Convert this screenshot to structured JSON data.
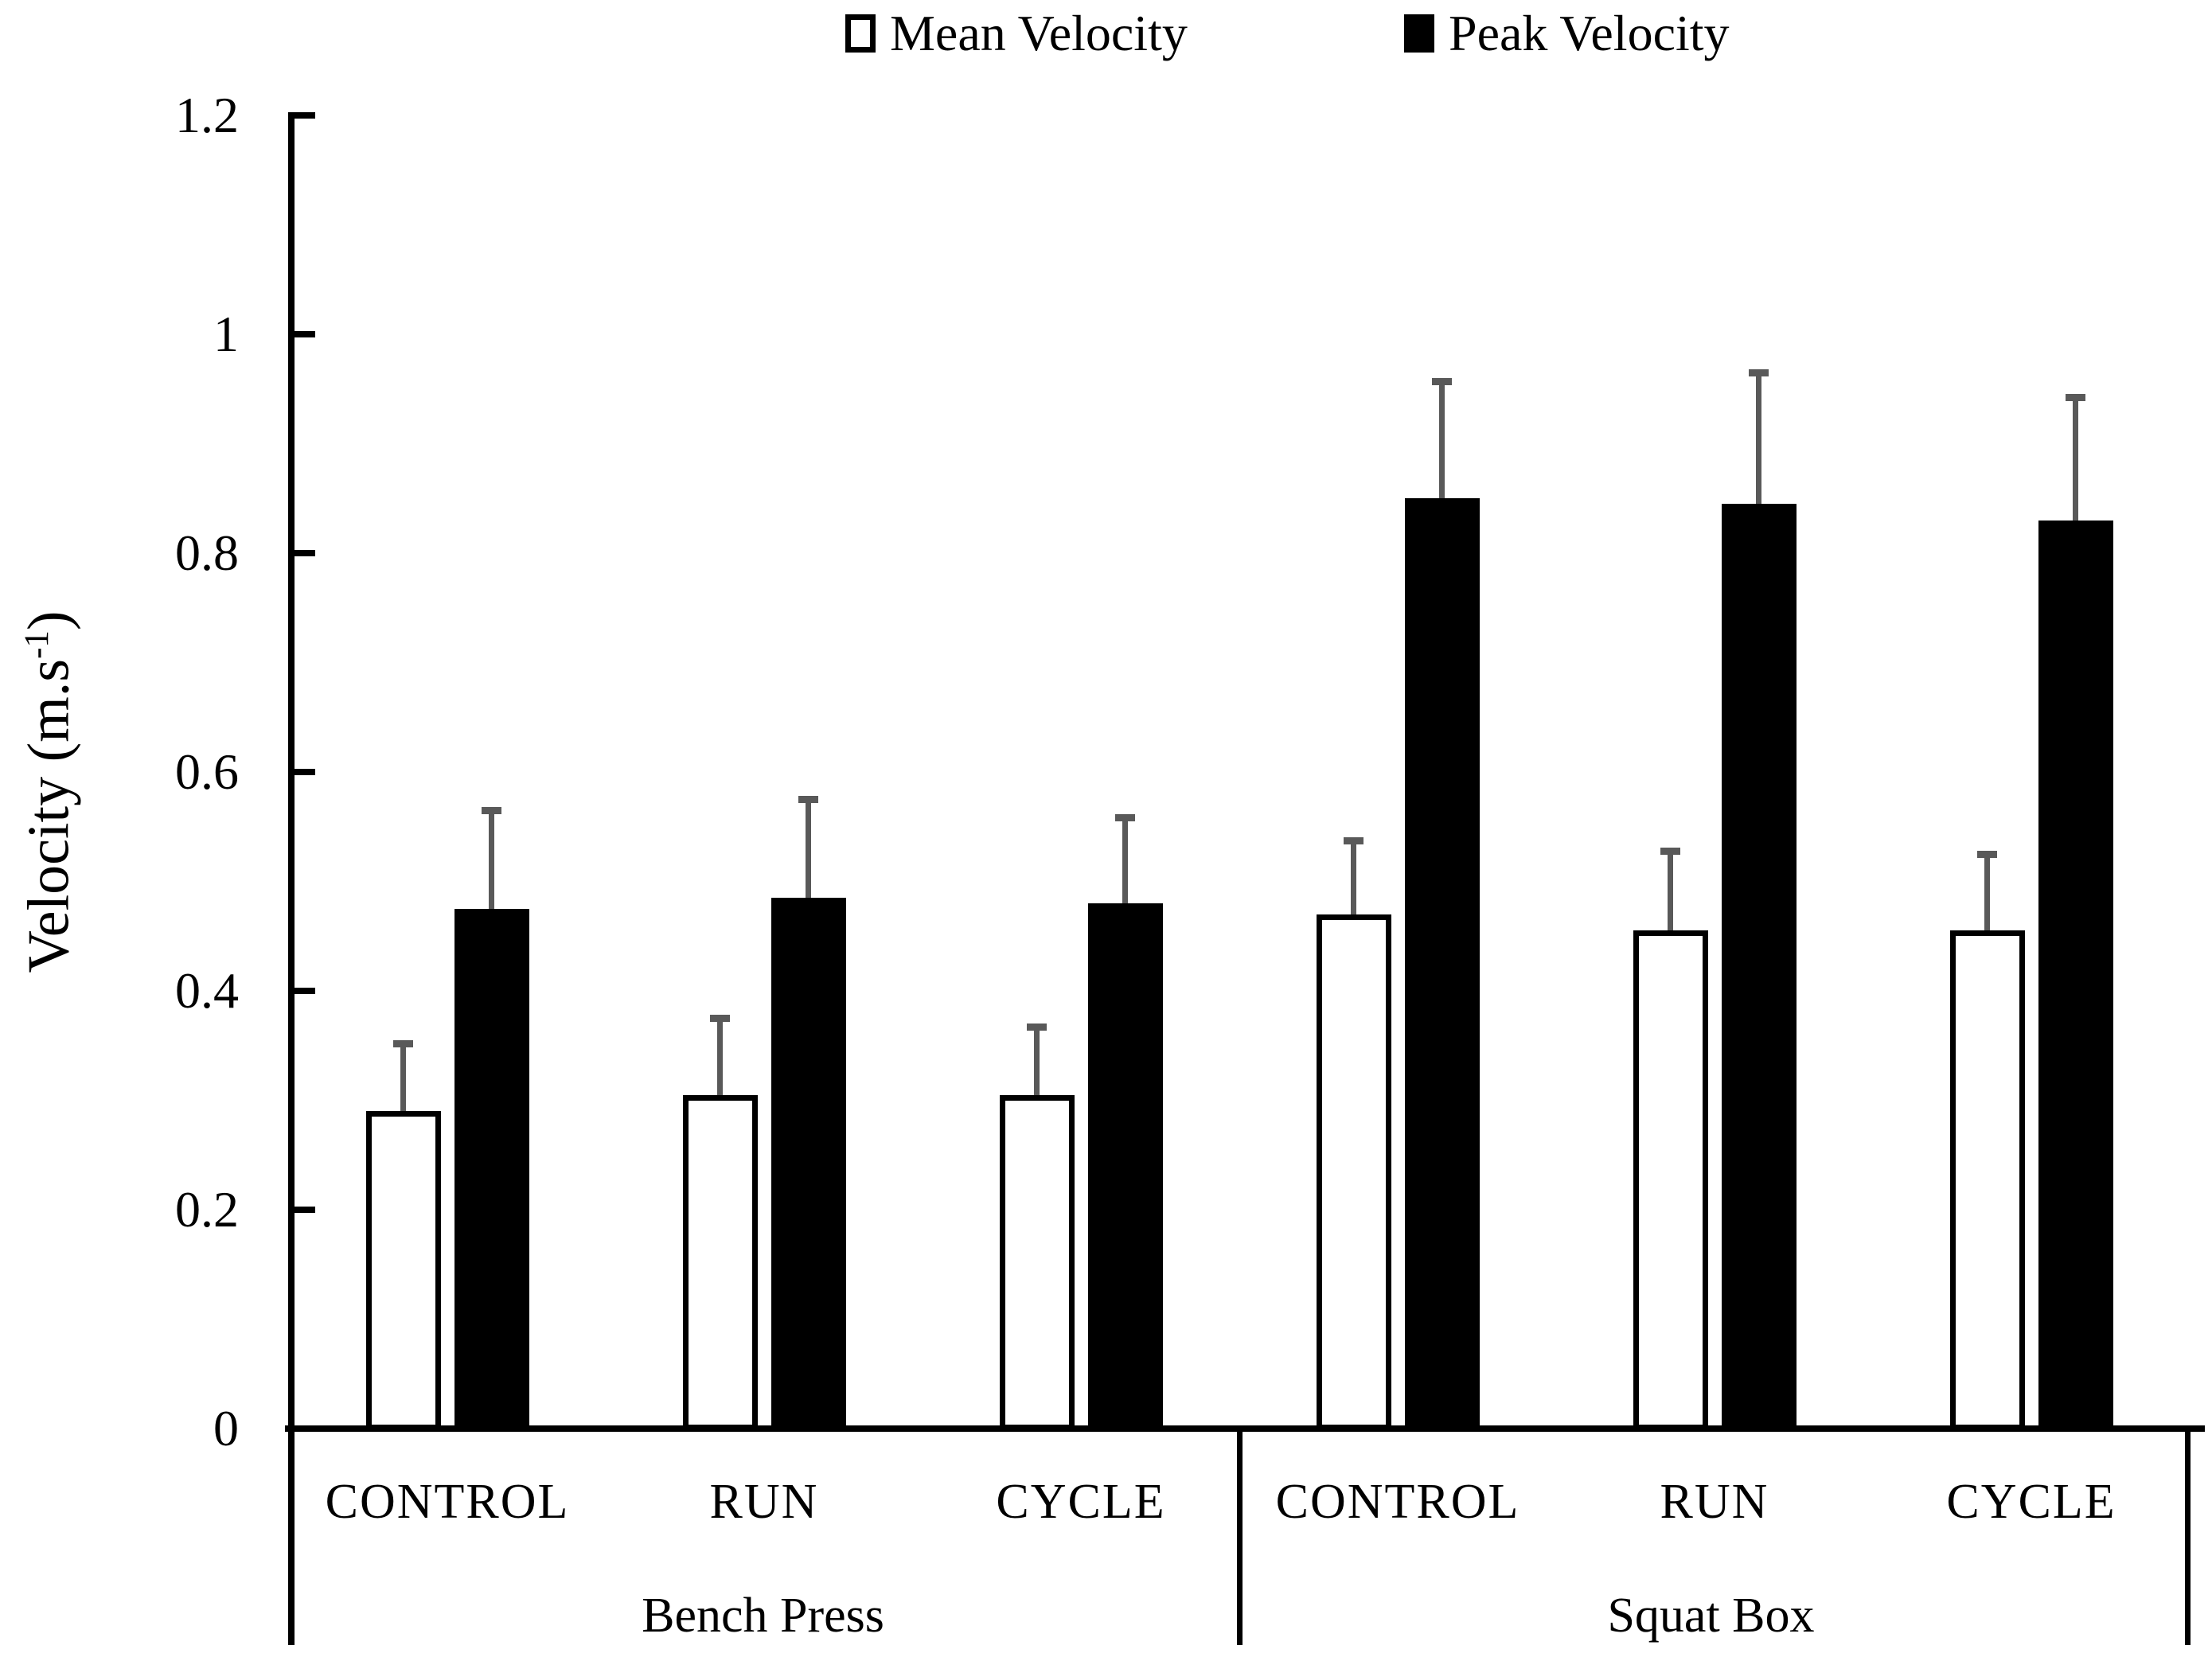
{
  "page": {
    "background": "#ffffff"
  },
  "axis": {
    "y_label_base": "Velocity (m.s",
    "y_label_sup": "-1",
    "y_label_close": ")",
    "ytick_labels": [
      "0",
      "0.2",
      "0.4",
      "0.6",
      "0.8",
      "1",
      "1.2"
    ]
  },
  "chart_data": {
    "type": "bar",
    "title": "",
    "xlabel": "",
    "ylabel": "Velocity (m.s-1)",
    "ylim": [
      0,
      1.2
    ],
    "yticks": [
      0,
      0.2,
      0.4,
      0.6,
      0.8,
      1,
      1.2
    ],
    "grid": false,
    "legend_position": "top",
    "error_bars": "plus_direction_only",
    "error_bar_color": "#595959",
    "bar_outline_color": "#000000",
    "groups": [
      {
        "label": "Bench Press",
        "categories": [
          "CONTROL",
          "RUN",
          "CYCLE"
        ]
      },
      {
        "label": "Squat Box",
        "categories": [
          "CONTROL",
          "RUN",
          "CYCLE"
        ]
      }
    ],
    "series": [
      {
        "name": "Mean Velocity",
        "style": "open",
        "fill": "#ffffff",
        "values": [
          0.29,
          0.305,
          0.305,
          0.47,
          0.455,
          0.455
        ],
        "errors_plus": [
          0.062,
          0.07,
          0.062,
          0.067,
          0.073,
          0.07
        ]
      },
      {
        "name": "Peak Velocity",
        "style": "filled",
        "fill": "#000000",
        "values": [
          0.475,
          0.485,
          0.48,
          0.85,
          0.845,
          0.83
        ],
        "errors_plus": [
          0.09,
          0.09,
          0.078,
          0.107,
          0.12,
          0.112
        ]
      }
    ]
  }
}
